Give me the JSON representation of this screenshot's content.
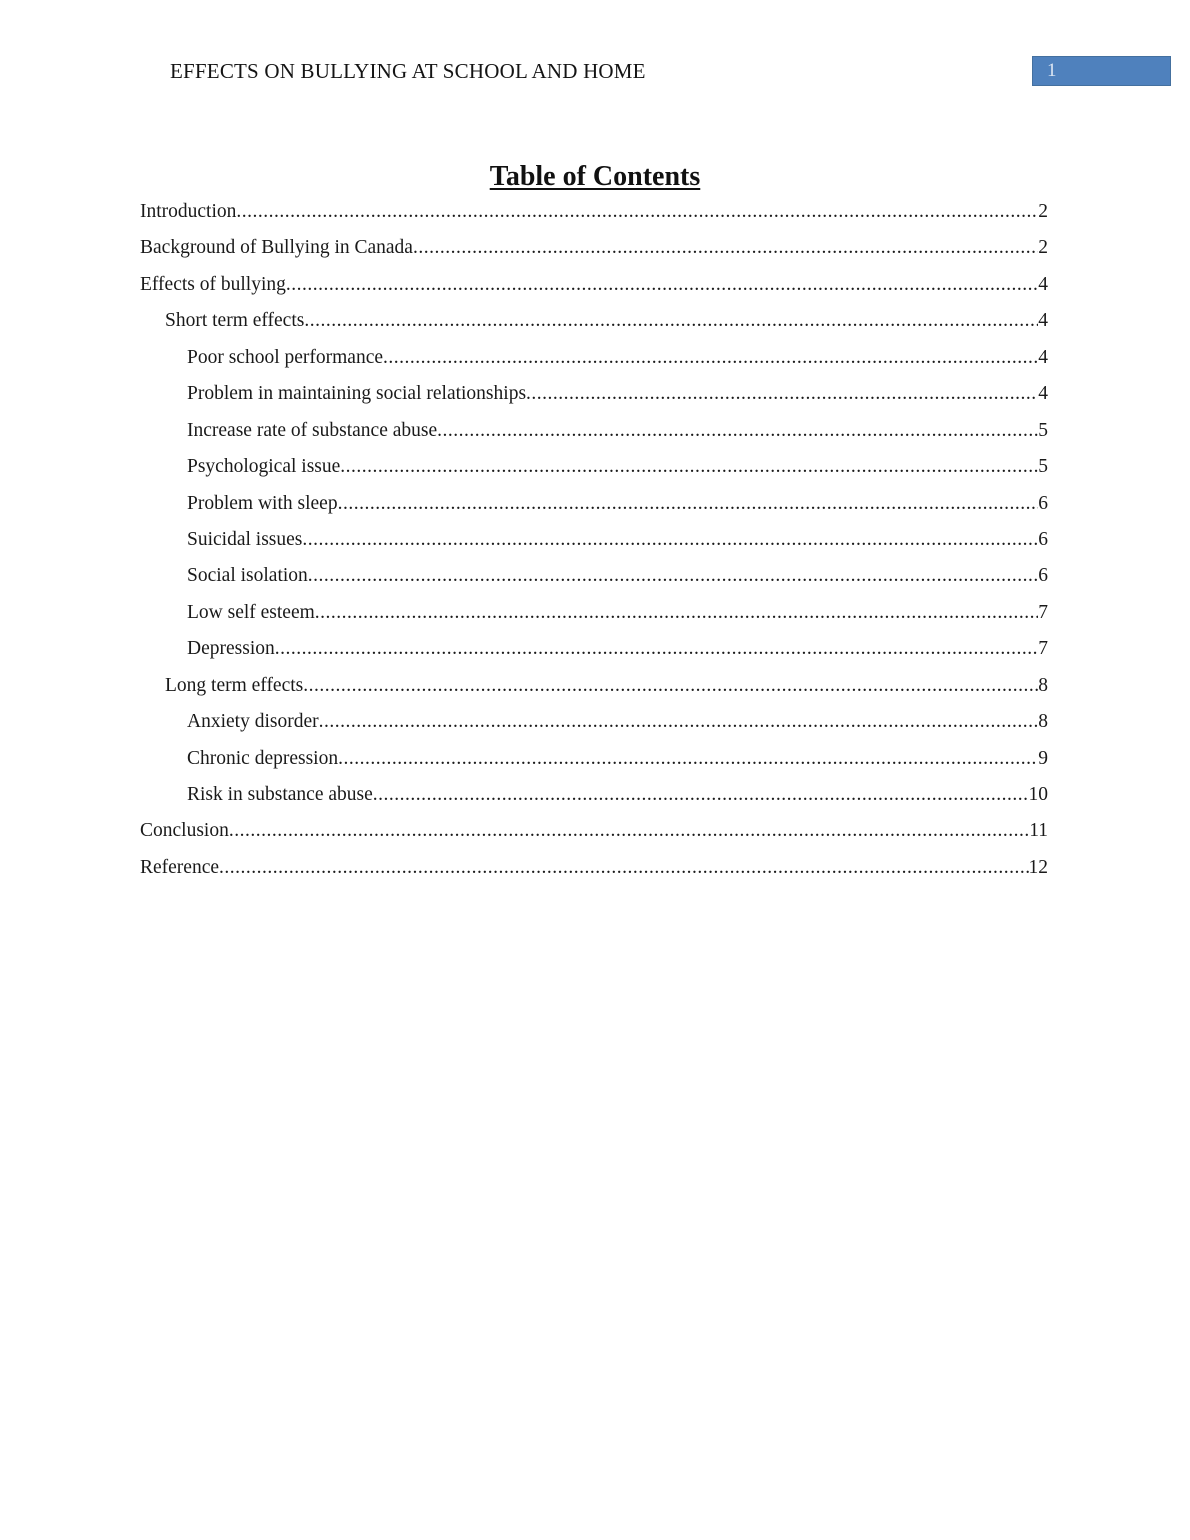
{
  "header": {
    "title": "EFFECTS ON BULLYING AT SCHOOL AND HOME",
    "page_number": "1"
  },
  "toc": {
    "heading": "Table of Contents",
    "entries": [
      {
        "title": "Introduction",
        "page": "2",
        "level": 1
      },
      {
        "title": "Background of Bullying in Canada",
        "page": "2",
        "level": 1
      },
      {
        "title": "Effects of bullying",
        "page": "4",
        "level": 1
      },
      {
        "title": "Short term effects",
        "page": "4",
        "level": 2
      },
      {
        "title": "Poor school performance",
        "page": "4",
        "level": 3
      },
      {
        "title": "Problem in maintaining social relationships",
        "page": "4",
        "level": 3
      },
      {
        "title": "Increase rate of substance abuse",
        "page": "5",
        "level": 3
      },
      {
        "title": "Psychological issue",
        "page": "5",
        "level": 3
      },
      {
        "title": "Problem with sleep",
        "page": "6",
        "level": 3
      },
      {
        "title": "Suicidal issues",
        "page": "6",
        "level": 3
      },
      {
        "title": "Social isolation",
        "page": "6",
        "level": 3
      },
      {
        "title": "Low self esteem",
        "page": "7",
        "level": 3
      },
      {
        "title": "Depression",
        "page": "7",
        "level": 3
      },
      {
        "title": "Long term effects",
        "page": "8",
        "level": 2
      },
      {
        "title": "Anxiety disorder",
        "page": "8",
        "level": 3
      },
      {
        "title": "Chronic depression",
        "page": "9",
        "level": 3
      },
      {
        "title": "Risk in substance abuse",
        "page": "10",
        "level": 3
      },
      {
        "title": "Conclusion",
        "page": "11",
        "level": 1
      },
      {
        "title": "Reference",
        "page": "12",
        "level": 1
      }
    ]
  },
  "colors": {
    "badge_background": "#4f81bd",
    "badge_border": "#44709f",
    "badge_text": "#dce6f2",
    "body_text": "#1a1a1a",
    "page_background": "#ffffff"
  }
}
